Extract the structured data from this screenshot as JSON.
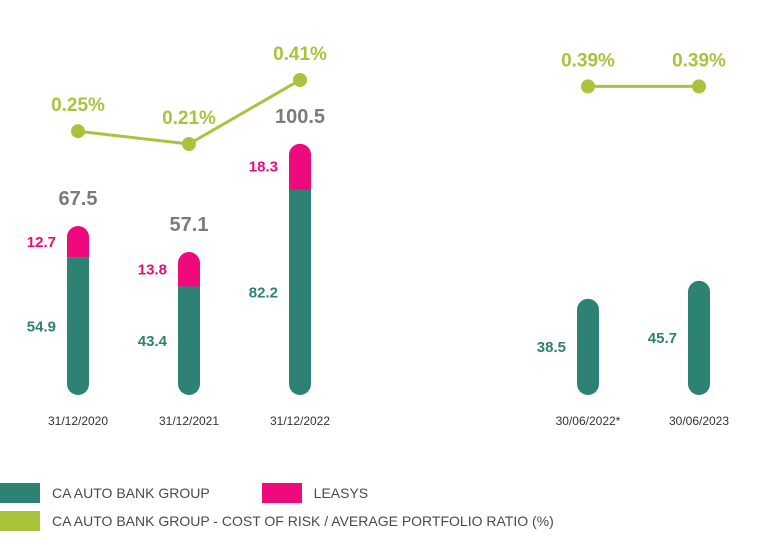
{
  "colors": {
    "group": "#2e8273",
    "leasys": "#ee0a7c",
    "ratio": "#a8c43c",
    "total_label": "#7b7b7b",
    "date_label": "#333333"
  },
  "legend": {
    "group_label": "CA AUTO BANK GROUP",
    "leasys_label": "LEASYS",
    "ratio_label": "CA AUTO BANK GROUP - COST OF RISK / AVERAGE PORTFOLIO RATIO (%)"
  },
  "chart_data": {
    "type": "bar",
    "stacked": true,
    "categories": [
      "31/12/2020",
      "31/12/2021",
      "31/12/2022",
      "30/06/2022*",
      "30/06/2023"
    ],
    "series": [
      {
        "name": "CA AUTO BANK GROUP",
        "values": [
          54.9,
          43.4,
          82.2,
          38.5,
          45.7
        ],
        "labels": [
          "54.9",
          "43.4",
          "82.2",
          "38.5",
          "45.7"
        ]
      },
      {
        "name": "LEASYS",
        "values": [
          12.7,
          13.8,
          18.3,
          null,
          null
        ],
        "labels": [
          "12.7",
          "13.8",
          "18.3",
          "",
          ""
        ]
      }
    ],
    "totals": [
      67.5,
      57.1,
      100.5,
      null,
      null
    ],
    "total_labels": [
      "67.5",
      "57.1",
      "100.5",
      "",
      ""
    ],
    "ratio_series": {
      "name": "CA AUTO BANK GROUP - COST OF RISK / AVERAGE PORTFOLIO RATIO (%)",
      "values": [
        0.25,
        0.21,
        0.41,
        0.39,
        0.39
      ],
      "labels": [
        "0.25%",
        "0.21%",
        "0.41%",
        "0.39%",
        "0.39%"
      ],
      "groups": [
        [
          0,
          1,
          2
        ],
        [
          3,
          4
        ]
      ]
    },
    "gridlines": false
  }
}
